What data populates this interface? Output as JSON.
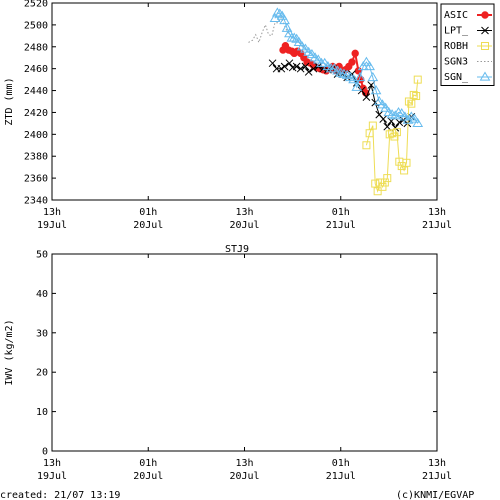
{
  "footer": {
    "created": "created: 21/07 13:19",
    "credit": "(c)KNMI/EGVAP"
  },
  "colors": {
    "ASIC": "#ee2222",
    "LPT_": "#000000",
    "ROBH": "#eedd55",
    "SGN3": "#999999",
    "SGN_": "#66bbee"
  },
  "chart_data": [
    {
      "type": "line",
      "title": "",
      "ylabel": "ZTD (mm)",
      "xlabel": "",
      "x_unit": "hours since 19Jul 13h",
      "xlim": [
        0,
        48
      ],
      "ylim": [
        2340,
        2520
      ],
      "yticks": [
        2340,
        2360,
        2380,
        2400,
        2420,
        2440,
        2460,
        2480,
        2500,
        2520
      ],
      "xticks": [
        {
          "x": 0,
          "label1": "13h",
          "label2": "19Jul"
        },
        {
          "x": 12,
          "label1": "01h",
          "label2": "20Jul"
        },
        {
          "x": 24,
          "label1": "13h",
          "label2": "20Jul"
        },
        {
          "x": 36,
          "label1": "01h",
          "label2": "21Jul"
        },
        {
          "x": 48,
          "label1": "13h",
          "label2": "21Jul"
        }
      ],
      "legend_position": "top-right",
      "series": [
        {
          "name": "ASIC",
          "style": "line-filled-circle",
          "points": [
            [
              28.8,
              2477
            ],
            [
              29.1,
              2481
            ],
            [
              29.5,
              2477
            ],
            [
              29.9,
              2476
            ],
            [
              30.2,
              2474
            ],
            [
              30.6,
              2476
            ],
            [
              31.0,
              2474
            ],
            [
              31.4,
              2470
            ],
            [
              31.8,
              2466
            ],
            [
              32.2,
              2465
            ],
            [
              32.6,
              2463
            ],
            [
              33.0,
              2461
            ],
            [
              33.4,
              2460
            ],
            [
              33.8,
              2459
            ],
            [
              34.2,
              2458
            ],
            [
              34.6,
              2460
            ],
            [
              35.0,
              2462
            ],
            [
              35.4,
              2458
            ],
            [
              35.8,
              2462
            ],
            [
              36.2,
              2458
            ],
            [
              36.6,
              2459
            ],
            [
              37.0,
              2462
            ],
            [
              37.4,
              2466
            ],
            [
              37.8,
              2474
            ],
            [
              38.2,
              2458
            ],
            [
              38.5,
              2450
            ],
            [
              38.8,
              2442
            ],
            [
              39.1,
              2438
            ]
          ]
        },
        {
          "name": "LPT_",
          "style": "line-x",
          "points": [
            [
              27.5,
              2465
            ],
            [
              28.0,
              2460
            ],
            [
              28.6,
              2460
            ],
            [
              29.0,
              2462
            ],
            [
              29.6,
              2465
            ],
            [
              30.0,
              2461
            ],
            [
              30.5,
              2462
            ],
            [
              31.0,
              2460
            ],
            [
              31.6,
              2462
            ],
            [
              32.0,
              2457
            ],
            [
              32.6,
              2460
            ],
            [
              33.2,
              2462
            ],
            [
              33.8,
              2460
            ],
            [
              34.4,
              2459
            ],
            [
              35.0,
              2460
            ],
            [
              35.6,
              2455
            ],
            [
              36.2,
              2455
            ],
            [
              36.8,
              2452
            ],
            [
              37.4,
              2455
            ],
            [
              38.0,
              2447
            ],
            [
              38.6,
              2440
            ],
            [
              39.2,
              2434
            ],
            [
              39.8,
              2445
            ],
            [
              40.3,
              2429
            ],
            [
              40.8,
              2418
            ],
            [
              41.3,
              2414
            ],
            [
              41.8,
              2407
            ],
            [
              42.3,
              2412
            ],
            [
              42.8,
              2406
            ],
            [
              43.3,
              2411
            ],
            [
              43.8,
              2413
            ],
            [
              44.3,
              2410
            ],
            [
              44.8,
              2416
            ]
          ]
        },
        {
          "name": "ROBH",
          "style": "line-open-square",
          "points": [
            [
              39.2,
              2390
            ],
            [
              39.6,
              2401
            ],
            [
              40.0,
              2408
            ],
            [
              40.3,
              2355
            ],
            [
              40.6,
              2348
            ],
            [
              40.9,
              2356
            ],
            [
              41.2,
              2352
            ],
            [
              41.5,
              2356
            ],
            [
              41.8,
              2360
            ],
            [
              42.1,
              2400
            ],
            [
              42.4,
              2401
            ],
            [
              42.7,
              2398
            ],
            [
              43.0,
              2402
            ],
            [
              43.3,
              2375
            ],
            [
              43.6,
              2371
            ],
            [
              43.9,
              2367
            ],
            [
              44.2,
              2374
            ],
            [
              44.5,
              2430
            ],
            [
              44.8,
              2428
            ],
            [
              45.1,
              2436
            ],
            [
              45.4,
              2435
            ],
            [
              45.6,
              2450
            ]
          ]
        },
        {
          "name": "SGN3",
          "style": "dotted",
          "points": [
            [
              24.5,
              2484
            ],
            [
              25.0,
              2486
            ],
            [
              25.4,
              2491
            ],
            [
              25.8,
              2484
            ],
            [
              26.2,
              2493
            ],
            [
              26.6,
              2500
            ],
            [
              27.0,
              2491
            ],
            [
              27.4,
              2490
            ],
            [
              27.8,
              2502
            ],
            [
              28.2,
              2502
            ],
            [
              28.6,
              2507
            ],
            [
              29.0,
              2499
            ],
            [
              29.4,
              2493
            ],
            [
              29.8,
              2490
            ],
            [
              30.2,
              2487
            ],
            [
              30.6,
              2487
            ],
            [
              31.0,
              2483
            ],
            [
              31.4,
              2480
            ],
            [
              31.8,
              2476
            ],
            [
              32.2,
              2475
            ]
          ]
        },
        {
          "name": "SGN_",
          "style": "line-open-triangle",
          "points": [
            [
              27.8,
              2506
            ],
            [
              28.1,
              2511
            ],
            [
              28.4,
              2510
            ],
            [
              28.7,
              2508
            ],
            [
              29.0,
              2504
            ],
            [
              29.3,
              2497
            ],
            [
              29.6,
              2492
            ],
            [
              29.9,
              2488
            ],
            [
              30.2,
              2488
            ],
            [
              30.5,
              2487
            ],
            [
              30.8,
              2484
            ],
            [
              31.2,
              2480
            ],
            [
              31.6,
              2478
            ],
            [
              32.0,
              2475
            ],
            [
              32.4,
              2473
            ],
            [
              32.8,
              2470
            ],
            [
              33.2,
              2468
            ],
            [
              33.6,
              2465
            ],
            [
              34.0,
              2465
            ],
            [
              34.4,
              2462
            ],
            [
              34.8,
              2460
            ],
            [
              35.2,
              2460
            ],
            [
              35.6,
              2458
            ],
            [
              36.0,
              2456
            ],
            [
              36.4,
              2455
            ],
            [
              36.8,
              2454
            ],
            [
              37.2,
              2452
            ],
            [
              37.6,
              2450
            ],
            [
              38.0,
              2443
            ],
            [
              38.4,
              2452
            ],
            [
              38.8,
              2462
            ],
            [
              39.2,
              2466
            ],
            [
              39.6,
              2462
            ],
            [
              40.0,
              2452
            ],
            [
              40.4,
              2440
            ],
            [
              40.8,
              2430
            ],
            [
              41.2,
              2427
            ],
            [
              41.6,
              2424
            ],
            [
              42.0,
              2420
            ],
            [
              42.4,
              2418
            ],
            [
              42.8,
              2417
            ],
            [
              43.2,
              2420
            ],
            [
              43.6,
              2419
            ],
            [
              44.0,
              2416
            ],
            [
              44.4,
              2413
            ],
            [
              44.8,
              2416
            ],
            [
              45.2,
              2414
            ],
            [
              45.6,
              2410
            ]
          ]
        }
      ]
    },
    {
      "type": "line",
      "title": "STJ9",
      "ylabel": "IWV (kg/m2)",
      "xlabel": "",
      "xlim": [
        0,
        48
      ],
      "ylim": [
        0,
        50
      ],
      "yticks": [
        0,
        10,
        20,
        30,
        40,
        50
      ],
      "xticks": [
        {
          "x": 0,
          "label1": "13h",
          "label2": "19Jul"
        },
        {
          "x": 12,
          "label1": "01h",
          "label2": "20Jul"
        },
        {
          "x": 24,
          "label1": "13h",
          "label2": "20Jul"
        },
        {
          "x": 36,
          "label1": "01h",
          "label2": "21Jul"
        },
        {
          "x": 48,
          "label1": "13h",
          "label2": "21Jul"
        }
      ],
      "series": []
    }
  ]
}
